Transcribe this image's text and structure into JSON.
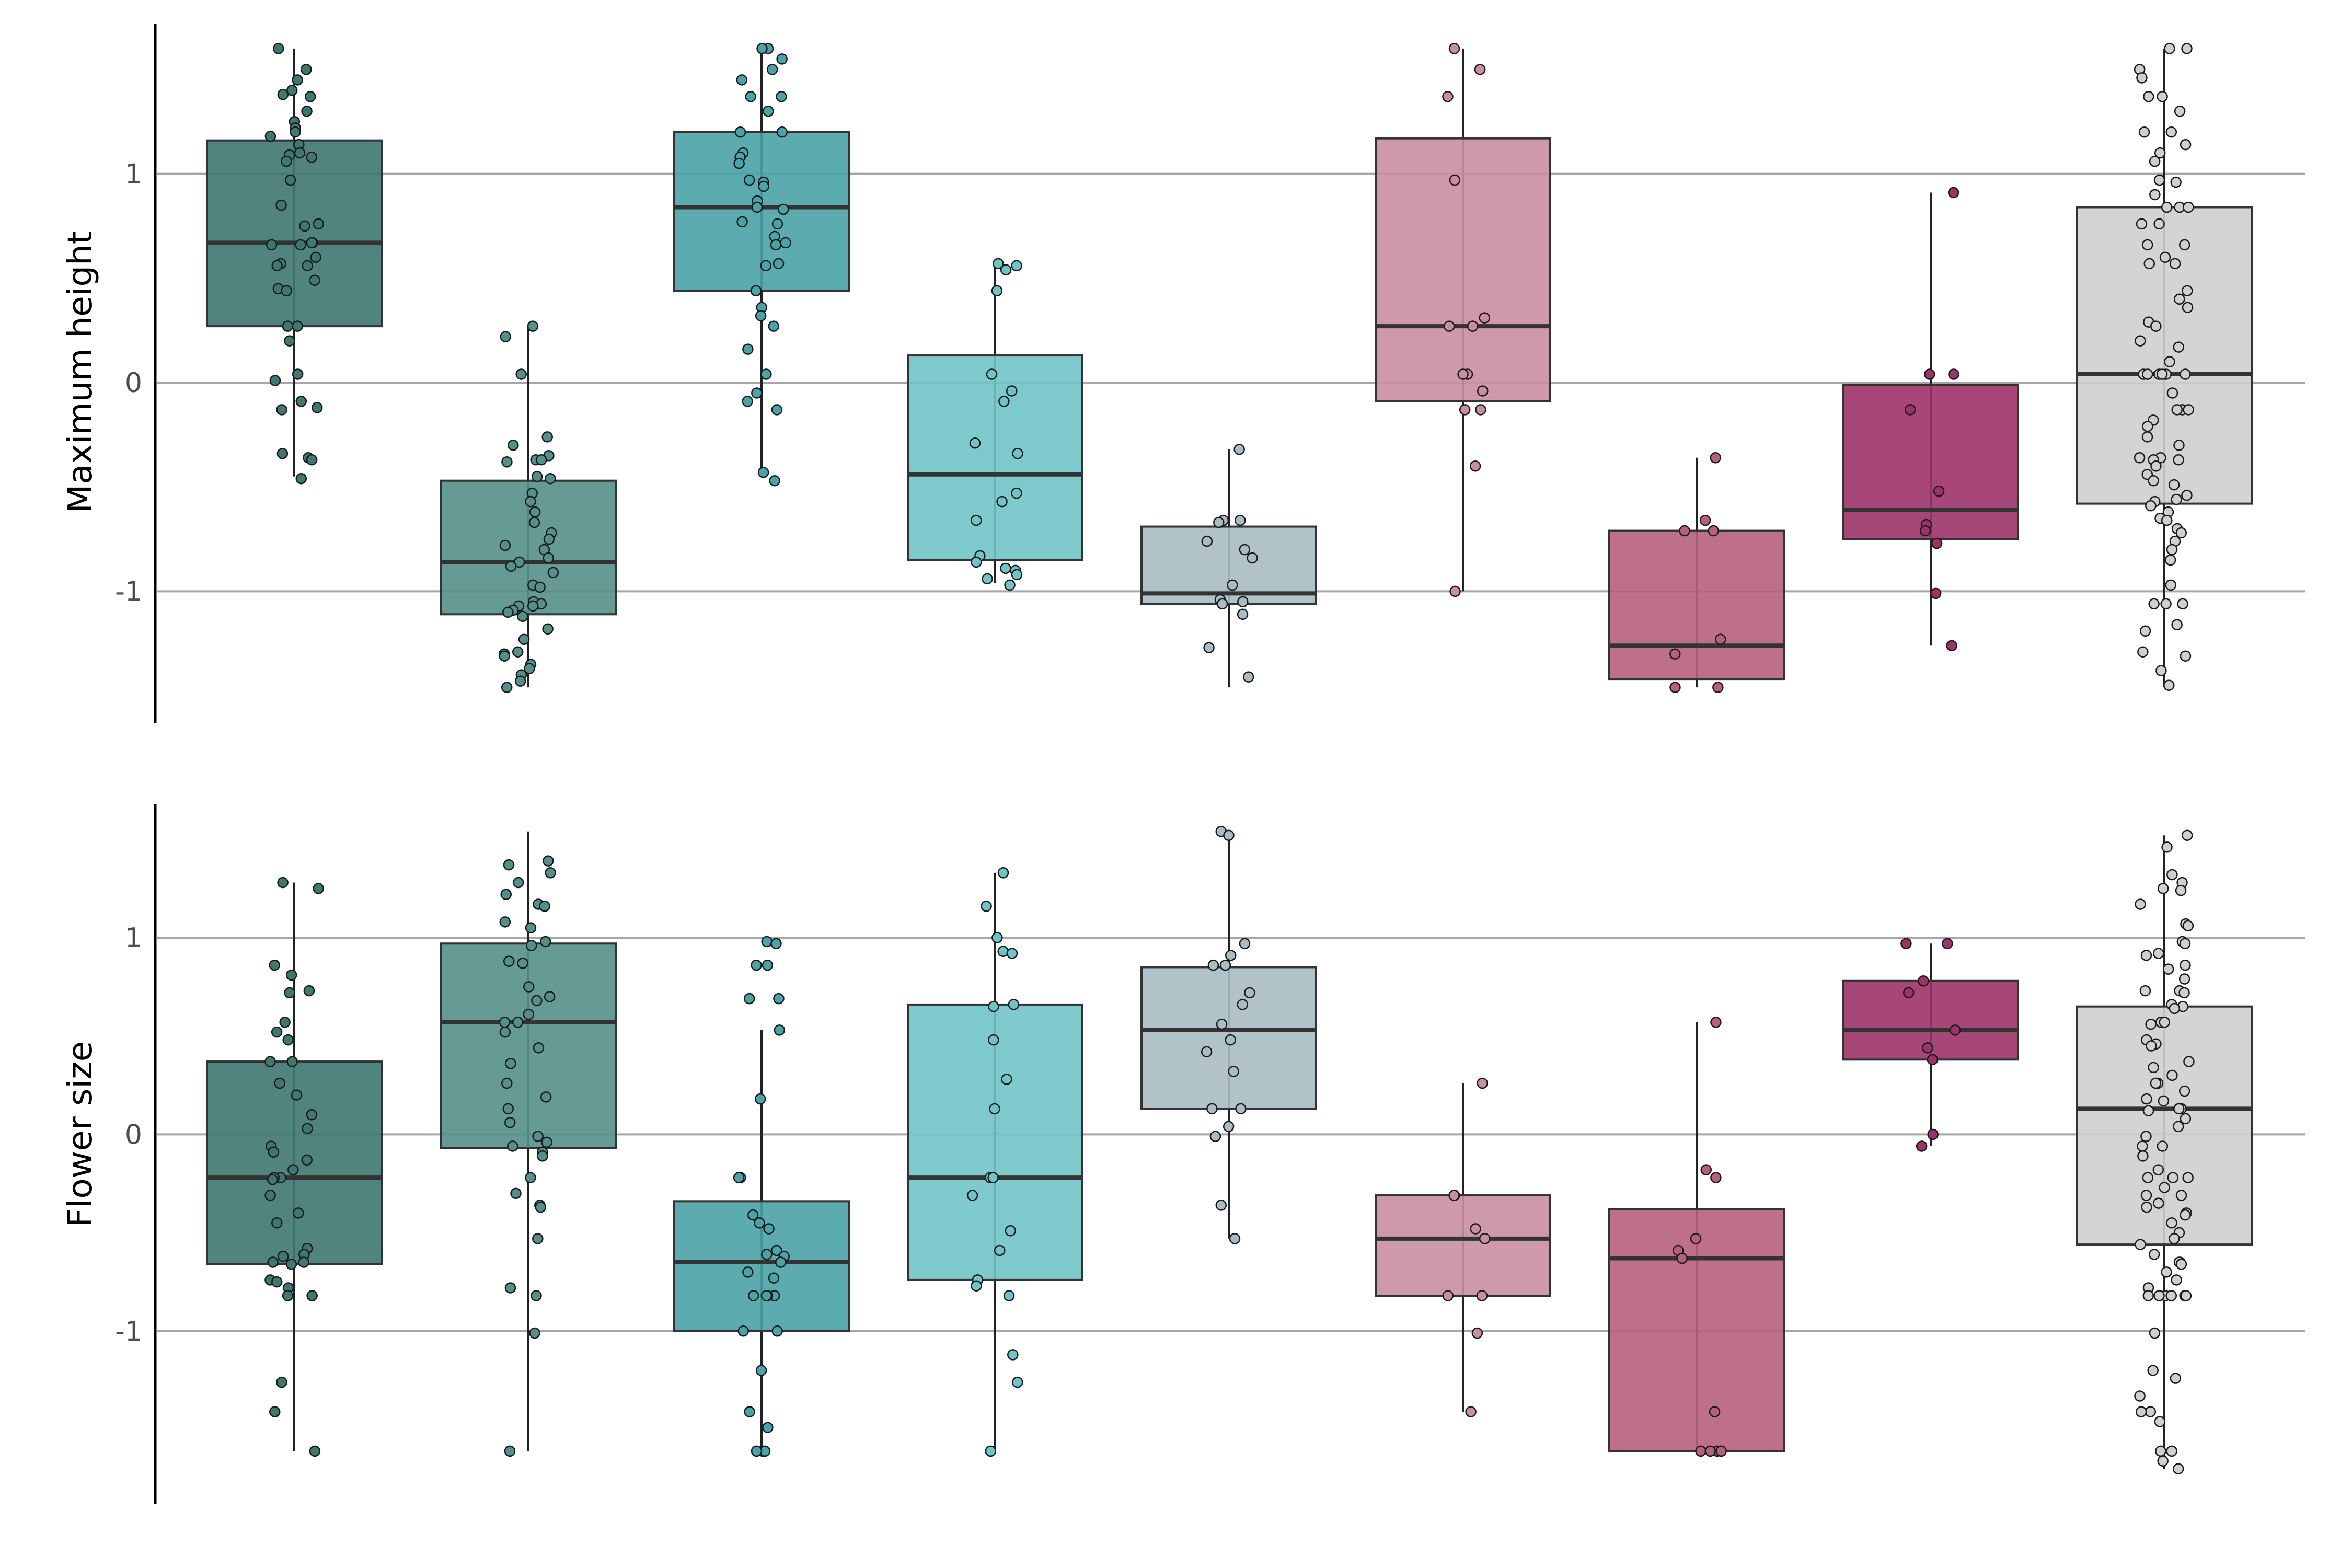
{
  "chart_data": [
    {
      "type": "boxplot",
      "ylabel": "Maximum height",
      "yticks": [
        -1,
        0,
        1
      ],
      "ylim": [
        -1.63,
        1.72
      ],
      "grid": "horizontal",
      "colors": [
        "#3f7771",
        "#548f8a",
        "#4aa3a6",
        "#70c3c6",
        "#a9bcc3",
        "#c98ea2",
        "#b65f80",
        "#9c3368",
        "#cfcfcf"
      ],
      "boxes": [
        {
          "q1": 0.27,
          "median": 0.67,
          "q3": 1.16,
          "whislo": -0.45,
          "whishi": 1.6,
          "points": [
            1.6,
            1.5,
            1.45,
            1.4,
            1.38,
            1.37,
            1.3,
            1.25,
            1.22,
            1.2,
            1.18,
            1.14,
            1.1,
            1.09,
            1.08,
            1.06,
            0.97,
            0.85,
            0.76,
            0.75,
            0.67,
            0.67,
            0.66,
            0.66,
            0.6,
            0.57,
            0.56,
            0.56,
            0.49,
            0.45,
            0.44,
            0.27,
            0.27,
            0.2,
            0.04,
            0.01,
            -0.09,
            -0.12,
            -0.13,
            -0.34,
            -0.36,
            -0.37,
            -0.46
          ]
        },
        {
          "q1": -1.11,
          "median": -0.86,
          "q3": -0.47,
          "whislo": -1.46,
          "whishi": 0.27,
          "points": [
            0.27,
            0.22,
            0.04,
            -0.26,
            -0.3,
            -0.35,
            -0.37,
            -0.37,
            -0.38,
            -0.45,
            -0.46,
            -0.53,
            -0.57,
            -0.62,
            -0.67,
            -0.72,
            -0.75,
            -0.78,
            -0.8,
            -0.84,
            -0.86,
            -0.88,
            -0.91,
            -0.97,
            -0.98,
            -1.05,
            -1.06,
            -1.07,
            -1.07,
            -1.09,
            -1.1,
            -1.12,
            -1.18,
            -1.23,
            -1.29,
            -1.3,
            -1.31,
            -1.35,
            -1.37,
            -1.4,
            -1.43,
            -1.46
          ]
        },
        {
          "q1": 0.44,
          "median": 0.84,
          "q3": 1.2,
          "whislo": -0.44,
          "whishi": 1.6,
          "points": [
            1.6,
            1.6,
            1.55,
            1.5,
            1.45,
            1.37,
            1.37,
            1.3,
            1.2,
            1.2,
            1.1,
            1.08,
            1.05,
            0.97,
            0.96,
            0.94,
            0.87,
            0.84,
            0.83,
            0.77,
            0.76,
            0.7,
            0.67,
            0.66,
            0.57,
            0.56,
            0.44,
            0.36,
            0.32,
            0.27,
            0.16,
            0.04,
            -0.05,
            -0.09,
            -0.13,
            -0.43,
            -0.47
          ]
        },
        {
          "q1": -0.85,
          "median": -0.44,
          "q3": 0.13,
          "whislo": -0.96,
          "whishi": 0.57,
          "points": [
            0.57,
            0.56,
            0.54,
            0.44,
            0.04,
            -0.04,
            -0.09,
            -0.29,
            -0.34,
            -0.53,
            -0.57,
            -0.66,
            -0.83,
            -0.86,
            -0.89,
            -0.9,
            -0.92,
            -0.94,
            -0.97
          ]
        },
        {
          "q1": -1.06,
          "median": -1.01,
          "q3": -0.69,
          "whislo": -1.46,
          "whishi": -0.32,
          "points": [
            -0.32,
            -0.66,
            -0.66,
            -0.67,
            -0.76,
            -0.8,
            -0.84,
            -0.97,
            -1.04,
            -1.05,
            -1.06,
            -1.11,
            -1.27,
            -1.41
          ]
        },
        {
          "q1": -0.09,
          "median": 0.27,
          "q3": 1.17,
          "whislo": -1.0,
          "whishi": 1.6,
          "points": [
            1.6,
            1.5,
            1.37,
            0.97,
            0.31,
            0.27,
            0.27,
            0.04,
            0.04,
            -0.04,
            -0.13,
            -0.13,
            -0.4,
            -1.0
          ]
        },
        {
          "q1": -1.42,
          "median": -1.26,
          "q3": -0.71,
          "whislo": -1.46,
          "whishi": -0.36,
          "points": [
            -0.36,
            -0.66,
            -0.71,
            -0.71,
            -1.23,
            -1.3,
            -1.46,
            -1.46
          ]
        },
        {
          "q1": -0.75,
          "median": -0.61,
          "q3": -0.01,
          "whislo": -1.26,
          "whishi": 0.91,
          "points": [
            0.91,
            0.04,
            0.04,
            -0.13,
            -0.52,
            -0.68,
            -0.71,
            -0.77,
            -1.01,
            -1.26
          ]
        },
        {
          "q1": -0.58,
          "median": 0.04,
          "q3": 0.84,
          "whislo": -1.46,
          "whishi": 1.6,
          "points": [
            1.6,
            1.6,
            1.5,
            1.46,
            1.37,
            1.37,
            1.3,
            1.2,
            1.2,
            1.14,
            1.1,
            1.06,
            0.97,
            0.97,
            0.96,
            0.9,
            0.84,
            0.84,
            0.84,
            0.76,
            0.76,
            0.66,
            0.66,
            0.6,
            0.57,
            0.57,
            0.44,
            0.4,
            0.36,
            0.29,
            0.27,
            0.2,
            0.17,
            0.1,
            0.04,
            0.04,
            0.04,
            0.04,
            0.04,
            0.04,
            -0.05,
            -0.13,
            -0.13,
            -0.13,
            -0.18,
            -0.21,
            -0.26,
            -0.3,
            -0.36,
            -0.36,
            -0.37,
            -0.37,
            -0.4,
            -0.44,
            -0.47,
            -0.49,
            -0.54,
            -0.56,
            -0.57,
            -0.59,
            -0.62,
            -0.65,
            -0.66,
            -0.7,
            -0.72,
            -0.76,
            -0.8,
            -0.85,
            -0.97,
            -1.06,
            -1.06,
            -1.06,
            -1.16,
            -1.19,
            -1.29,
            -1.31,
            -1.38,
            -1.45
          ]
        }
      ]
    },
    {
      "type": "boxplot",
      "ylabel": "Flower size",
      "yticks": [
        -1,
        0,
        1
      ],
      "ylim": [
        -1.88,
        1.68
      ],
      "grid": "horizontal",
      "colors": [
        "#3f7771",
        "#548f8a",
        "#4aa3a6",
        "#70c3c6",
        "#a9bcc3",
        "#c98ea2",
        "#b65f80",
        "#9c3368",
        "#cfcfcf"
      ],
      "boxes": [
        {
          "q1": -0.66,
          "median": -0.22,
          "q3": 0.37,
          "whislo": -1.61,
          "whishi": 1.28,
          "points": [
            1.28,
            1.25,
            0.86,
            0.81,
            0.73,
            0.72,
            0.57,
            0.52,
            0.48,
            0.37,
            0.37,
            0.26,
            0.2,
            0.1,
            0.03,
            -0.06,
            -0.09,
            -0.13,
            -0.18,
            -0.22,
            -0.22,
            -0.23,
            -0.31,
            -0.4,
            -0.45,
            -0.58,
            -0.61,
            -0.62,
            -0.65,
            -0.65,
            -0.66,
            -0.74,
            -0.75,
            -0.78,
            -0.82,
            -0.82,
            -1.26,
            -1.41,
            -1.61
          ]
        },
        {
          "q1": -0.07,
          "median": 0.57,
          "q3": 0.97,
          "whislo": -1.61,
          "whishi": 1.54,
          "points": [
            1.39,
            1.37,
            1.33,
            1.28,
            1.22,
            1.17,
            1.16,
            1.08,
            1.05,
            0.98,
            0.96,
            0.88,
            0.87,
            0.75,
            0.7,
            0.68,
            0.61,
            0.57,
            0.57,
            0.52,
            0.44,
            0.36,
            0.26,
            0.19,
            0.13,
            0.06,
            -0.01,
            -0.04,
            -0.06,
            -0.09,
            -0.11,
            -0.22,
            -0.3,
            -0.36,
            -0.37,
            -0.53,
            -0.78,
            -0.82,
            -1.01,
            -1.61
          ]
        },
        {
          "q1": -1.0,
          "median": -0.65,
          "q3": -0.34,
          "whislo": -1.61,
          "whishi": 0.53,
          "points": [
            0.98,
            0.97,
            0.86,
            0.86,
            0.69,
            0.69,
            0.53,
            0.18,
            -0.22,
            -0.22,
            -0.41,
            -0.45,
            -0.48,
            -0.59,
            -0.61,
            -0.62,
            -0.65,
            -0.7,
            -0.73,
            -0.82,
            -0.82,
            -0.82,
            -0.82,
            -1.0,
            -1.0,
            -1.2,
            -1.41,
            -1.49,
            -1.61,
            -1.61,
            -1.61
          ]
        },
        {
          "q1": -0.74,
          "median": -0.22,
          "q3": 0.66,
          "whislo": -1.61,
          "whishi": 1.33,
          "points": [
            1.33,
            1.16,
            1.0,
            0.93,
            0.92,
            0.66,
            0.65,
            0.48,
            0.28,
            0.13,
            -0.22,
            -0.22,
            -0.31,
            -0.49,
            -0.59,
            -0.74,
            -0.77,
            -0.82,
            -1.12,
            -1.26,
            -1.61
          ]
        },
        {
          "q1": 0.13,
          "median": 0.53,
          "q3": 0.85,
          "whislo": -0.53,
          "whishi": 1.54,
          "points": [
            1.54,
            1.52,
            0.97,
            0.91,
            0.86,
            0.86,
            0.72,
            0.66,
            0.56,
            0.48,
            0.42,
            0.32,
            0.13,
            0.13,
            0.04,
            -0.01,
            -0.36,
            -0.53
          ]
        },
        {
          "q1": -0.82,
          "median": -0.53,
          "q3": -0.31,
          "whislo": -1.41,
          "whishi": 0.26,
          "points": [
            0.26,
            -0.31,
            -0.31,
            -0.48,
            -0.53,
            -0.82,
            -0.82,
            -1.01,
            -1.41
          ]
        },
        {
          "q1": -1.61,
          "median": -0.63,
          "q3": -0.38,
          "whislo": -1.61,
          "whishi": 0.57,
          "points": [
            0.57,
            -0.18,
            -0.22,
            -0.53,
            -0.59,
            -0.63,
            -1.41,
            -1.61,
            -1.61,
            -1.61,
            -1.61
          ]
        },
        {
          "q1": 0.38,
          "median": 0.53,
          "q3": 0.78,
          "whislo": -0.06,
          "whishi": 0.97,
          "points": [
            0.97,
            0.97,
            0.78,
            0.72,
            0.53,
            0.44,
            0.38,
            0.0,
            -0.06
          ]
        },
        {
          "q1": -0.56,
          "median": 0.13,
          "q3": 0.65,
          "whislo": -1.7,
          "whishi": 1.52,
          "points": [
            1.52,
            1.46,
            1.32,
            1.28,
            1.25,
            1.24,
            1.17,
            1.07,
            1.06,
            0.98,
            0.97,
            0.92,
            0.91,
            0.86,
            0.84,
            0.79,
            0.73,
            0.73,
            0.72,
            0.66,
            0.65,
            0.64,
            0.57,
            0.57,
            0.56,
            0.48,
            0.46,
            0.45,
            0.37,
            0.34,
            0.3,
            0.26,
            0.26,
            0.22,
            0.18,
            0.17,
            0.13,
            0.13,
            0.12,
            0.08,
            0.04,
            -0.01,
            -0.06,
            -0.06,
            -0.11,
            -0.18,
            -0.22,
            -0.22,
            -0.22,
            -0.27,
            -0.31,
            -0.31,
            -0.35,
            -0.37,
            -0.4,
            -0.41,
            -0.45,
            -0.5,
            -0.53,
            -0.56,
            -0.61,
            -0.65,
            -0.65,
            -0.66,
            -0.7,
            -0.74,
            -0.78,
            -0.82,
            -0.82,
            -0.82,
            -0.82,
            -0.82,
            -0.82,
            -1.01,
            -1.2,
            -1.24,
            -1.33,
            -1.41,
            -1.41,
            -1.46,
            -1.61,
            -1.61,
            -1.66,
            -1.7
          ]
        }
      ]
    }
  ]
}
